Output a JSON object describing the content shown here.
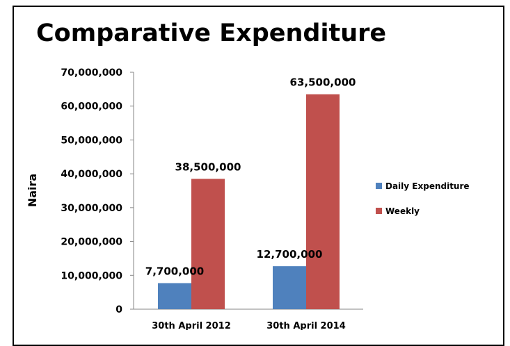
{
  "colors": {
    "daily": "#4f81bd",
    "weekly": "#c0504d"
  },
  "chart_data": {
    "type": "bar",
    "title": "Comparative Expenditure",
    "xlabel": "",
    "ylabel": "Naira",
    "categories": [
      "30th April 2012",
      "30th April 2014"
    ],
    "ylim": [
      0,
      70000000
    ],
    "yticks": [
      0,
      10000000,
      20000000,
      30000000,
      40000000,
      50000000,
      60000000,
      70000000
    ],
    "ytick_labels": [
      "0",
      "10,000,000",
      "20,000,000",
      "30,000,000",
      "40,000,000",
      "50,000,000",
      "60,000,000",
      "70,000,000"
    ],
    "grid": false,
    "legend_position": "right",
    "series": [
      {
        "name": "Daily Expenditure",
        "color": "#4f81bd",
        "values": [
          7700000,
          12700000
        ],
        "data_labels": [
          "7,700,000",
          "12,700,000"
        ]
      },
      {
        "name": "Weekly",
        "color": "#c0504d",
        "values": [
          38500000,
          63500000
        ],
        "data_labels": [
          "38,500,000",
          "63,500,000"
        ]
      }
    ]
  }
}
